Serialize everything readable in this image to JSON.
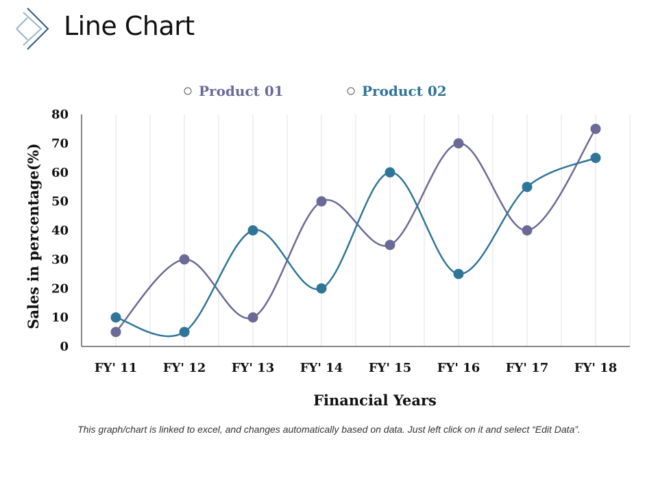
{
  "page": {
    "title": "Line Chart",
    "note": "This graph/chart is linked to excel, and changes automatically based on data. Just left click on it and select “Edit Data”.",
    "logo_icon": "diamond-chevron-icon"
  },
  "colors": {
    "product_01": "#6B6A96",
    "product_02": "#2F7597",
    "grid": "#E2E2E2",
    "axis": "#111111"
  },
  "chart_data": {
    "type": "line",
    "title": "",
    "xlabel": "Financial Years",
    "ylabel": "Sales in percentage(%)",
    "categories": [
      "FY' 11",
      "FY' 12",
      "FY' 13",
      "FY' 14",
      "FY' 15",
      "FY' 16",
      "FY' 17",
      "FY' 18"
    ],
    "ylim": [
      0,
      80
    ],
    "yticks": [
      0,
      10,
      20,
      30,
      40,
      50,
      60,
      70,
      80
    ],
    "grid": "vertical",
    "legend": "top-center",
    "smooth": true,
    "series": [
      {
        "name": "Product 01",
        "values": [
          5,
          30,
          10,
          50,
          35,
          70,
          40,
          75
        ]
      },
      {
        "name": "Product 02",
        "values": [
          10,
          5,
          40,
          20,
          60,
          25,
          55,
          65
        ]
      }
    ]
  }
}
